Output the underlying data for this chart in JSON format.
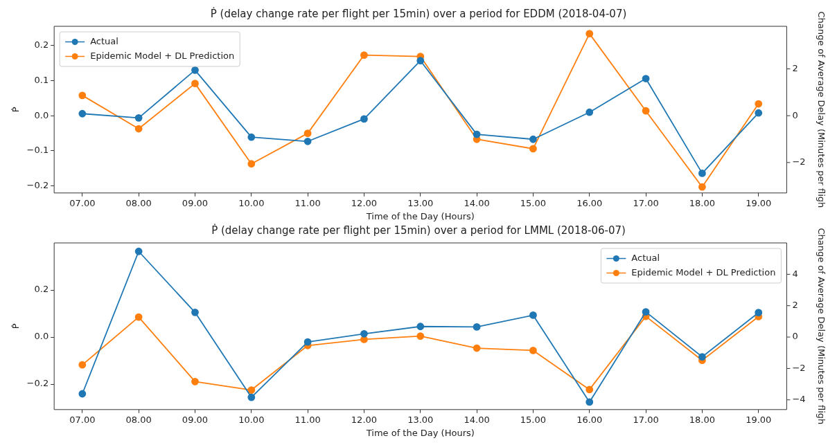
{
  "chart_data": [
    {
      "type": "line",
      "title": "Ṗ (delay change rate per flight per 15min) over a period for EDDM (2018-04-07)",
      "xlabel": "Time of the Day (Hours)",
      "ylabel": "Ṗ",
      "y2label": "Change of Average Delay (Minutes per fligh",
      "categories": [
        "07.00",
        "08.00",
        "09.00",
        "10.00",
        "11.00",
        "12.00",
        "13.00",
        "14.00",
        "15.00",
        "16.00",
        "17.00",
        "18.00",
        "19.00"
      ],
      "series": [
        {
          "name": "Actual",
          "color": "#1f77b4",
          "values": [
            0.006,
            -0.006,
            0.13,
            -0.061,
            -0.073,
            -0.009,
            0.157,
            -0.053,
            -0.067,
            0.01,
            0.106,
            -0.164,
            0.008
          ]
        },
        {
          "name": "Epidemic Model + DL Prediction",
          "color": "#ff7f0e",
          "values": [
            0.058,
            -0.037,
            0.092,
            -0.137,
            -0.05,
            0.173,
            0.169,
            -0.067,
            -0.094,
            0.234,
            0.014,
            -0.203,
            0.034
          ]
        }
      ],
      "ylim": [
        -0.22,
        0.255
      ],
      "yticks": [
        {
          "value": -0.2,
          "label": "−0.2"
        },
        {
          "value": -0.1,
          "label": "−0.1"
        },
        {
          "value": 0,
          "label": "0.0"
        },
        {
          "value": 0.1,
          "label": "0.1"
        },
        {
          "value": 0.2,
          "label": "0.2"
        }
      ],
      "y2lim": [
        -3.3,
        3.82
      ],
      "y2ticks": [
        -2,
        0,
        2
      ],
      "legend": "top left",
      "marker": "circle"
    },
    {
      "type": "line",
      "title": "Ṗ (delay change rate per flight per 15min) over a period for LMML (2018-06-07)",
      "xlabel": "Time of the Day (Hours)",
      "ylabel": "Ṗ",
      "y2label": "Change of Average Delay (Minutes per fligh",
      "categories": [
        "07.00",
        "08.00",
        "09.00",
        "10.00",
        "11.00",
        "12.00",
        "13.00",
        "14.00",
        "15.00",
        "16.00",
        "17.00",
        "18.00",
        "19.00"
      ],
      "series": [
        {
          "name": "Actual",
          "color": "#1f77b4",
          "values": [
            -0.241,
            0.364,
            0.105,
            -0.256,
            -0.021,
            0.014,
            0.045,
            0.043,
            0.093,
            -0.276,
            0.107,
            -0.084,
            0.104
          ]
        },
        {
          "name": "Epidemic Model + DL Prediction",
          "color": "#ff7f0e",
          "values": [
            -0.118,
            0.085,
            -0.189,
            -0.225,
            -0.036,
            -0.01,
            0.004,
            -0.047,
            -0.057,
            -0.223,
            0.088,
            -0.099,
            0.087
          ]
        }
      ],
      "ylim": [
        -0.308,
        0.4
      ],
      "yticks": [
        {
          "value": -0.2,
          "label": "−0.2"
        },
        {
          "value": 0,
          "label": "0.0"
        },
        {
          "value": 0.2,
          "label": "0.2"
        }
      ],
      "y2lim": [
        -4.62,
        6.0
      ],
      "y2ticks": [
        -4,
        -2,
        0,
        2,
        4
      ],
      "legend": "top right",
      "marker": "circle"
    }
  ]
}
